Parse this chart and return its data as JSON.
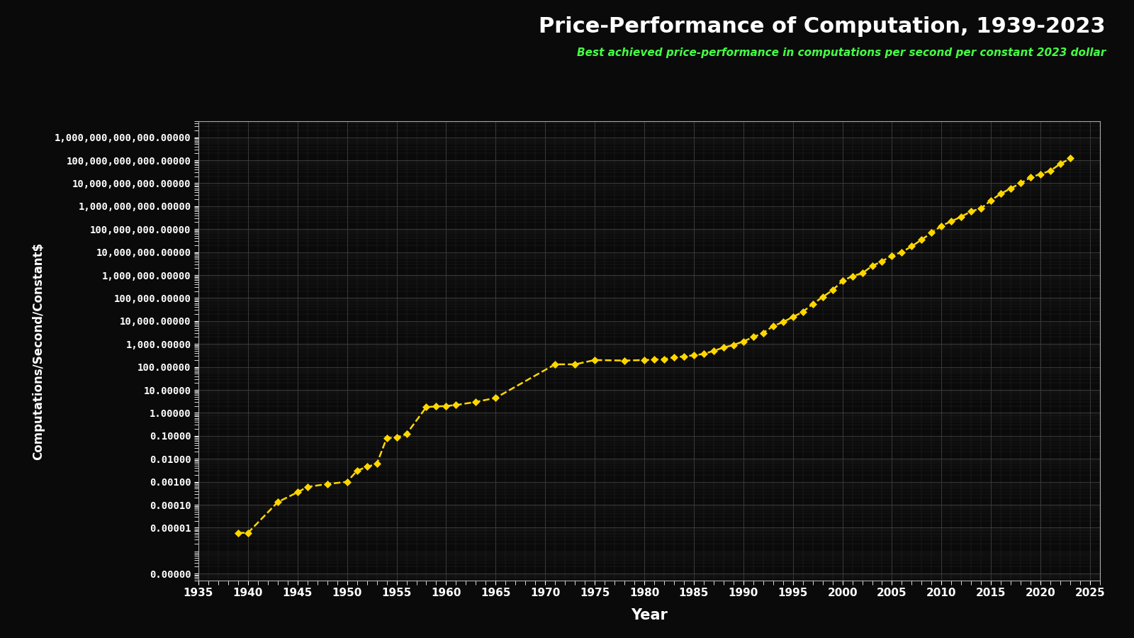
{
  "title": "Price-Performance of Computation, 1939-2023",
  "subtitle": "Best achieved price-performance in computations per second per constant 2023 dollar",
  "xlabel": "Year",
  "ylabel": "Computations/Second/Constant$",
  "background_color": "#0a0a0a",
  "line_color": "#FFD700",
  "marker_color": "#FFD700",
  "title_color": "#FFFFFF",
  "subtitle_color": "#44FF44",
  "axis_label_color": "#FFFFFF",
  "tick_label_color": "#FFFFFF",
  "grid_color": "#444444",
  "data": [
    [
      1939,
      6e-06
    ],
    [
      1940,
      6e-06
    ],
    [
      1943,
      0.00013
    ],
    [
      1945,
      0.00035
    ],
    [
      1946,
      0.0006
    ],
    [
      1948,
      0.0008
    ],
    [
      1950,
      0.001
    ],
    [
      1951,
      0.003
    ],
    [
      1952,
      0.0045
    ],
    [
      1953,
      0.006
    ],
    [
      1954,
      0.08
    ],
    [
      1955,
      0.085
    ],
    [
      1956,
      0.12
    ],
    [
      1958,
      1.8
    ],
    [
      1959,
      1.9
    ],
    [
      1960,
      2.0
    ],
    [
      1961,
      2.2
    ],
    [
      1963,
      3.0
    ],
    [
      1965,
      4.5
    ],
    [
      1971,
      130.0
    ],
    [
      1973,
      130.0
    ],
    [
      1975,
      200.0
    ],
    [
      1978,
      190.0
    ],
    [
      1980,
      200.0
    ],
    [
      1981,
      210.0
    ],
    [
      1982,
      220.0
    ],
    [
      1983,
      260.0
    ],
    [
      1984,
      290.0
    ],
    [
      1985,
      320.0
    ],
    [
      1986,
      370.0
    ],
    [
      1987,
      500.0
    ],
    [
      1988,
      700.0
    ],
    [
      1989,
      900.0
    ],
    [
      1990,
      1300.0
    ],
    [
      1991,
      2000.0
    ],
    [
      1992,
      3000.0
    ],
    [
      1993,
      6000.0
    ],
    [
      1994,
      9000.0
    ],
    [
      1995,
      15000.0
    ],
    [
      1996,
      25000.0
    ],
    [
      1997,
      55000.0
    ],
    [
      1998,
      110000.0
    ],
    [
      1999,
      220000.0
    ],
    [
      2000,
      550000.0
    ],
    [
      2001,
      900000.0
    ],
    [
      2002,
      1200000.0
    ],
    [
      2003,
      2500000.0
    ],
    [
      2004,
      4000000.0
    ],
    [
      2005,
      7000000.0
    ],
    [
      2006,
      10000000.0
    ],
    [
      2007,
      18000000.0
    ],
    [
      2008,
      35000000.0
    ],
    [
      2009,
      70000000.0
    ],
    [
      2010,
      140000000.0
    ],
    [
      2011,
      220000000.0
    ],
    [
      2012,
      350000000.0
    ],
    [
      2013,
      600000000.0
    ],
    [
      2014,
      800000000.0
    ],
    [
      2015,
      1800000000.0
    ],
    [
      2016,
      3500000000.0
    ],
    [
      2017,
      6000000000.0
    ],
    [
      2018,
      10000000000.0
    ],
    [
      2019,
      18000000000.0
    ],
    [
      2020,
      25000000000.0
    ],
    [
      2021,
      35000000000.0
    ],
    [
      2022,
      70000000000.0
    ],
    [
      2023,
      120000000000.0
    ]
  ],
  "xticks": [
    1935,
    1940,
    1945,
    1950,
    1955,
    1960,
    1965,
    1970,
    1975,
    1980,
    1985,
    1990,
    1995,
    2000,
    2005,
    2010,
    2015,
    2020,
    2025
  ],
  "ytick_values": [
    1e-07,
    1e-05,
    0.0001,
    0.001,
    0.01,
    0.1,
    1.0,
    10.0,
    100.0,
    1000.0,
    10000.0,
    100000.0,
    1000000.0,
    10000000.0,
    100000000.0,
    1000000000.0,
    10000000000.0,
    100000000000.0,
    1000000000000.0
  ],
  "ytick_labels": [
    "0.00000",
    "0.00001",
    "0.00010",
    "0.00100",
    "0.01000",
    "0.10000",
    "1.00000",
    "10.00000",
    "100.00000",
    "1,000.00000",
    "10,000.00000",
    "100,000.00000",
    "1,000,000.00000",
    "10,000,000.00000",
    "100,000,000.00000",
    "1,000,000,000.00000",
    "10,000,000,000.00000",
    "100,000,000,000.00000",
    "1,000,000,000,000.00000"
  ]
}
